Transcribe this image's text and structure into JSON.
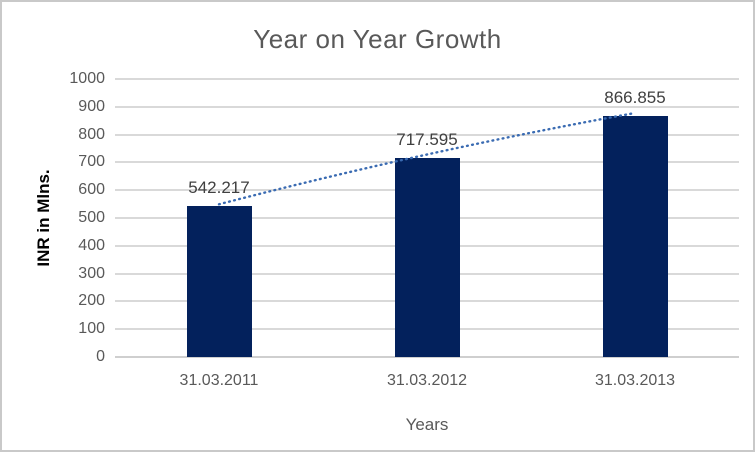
{
  "chart_data": {
    "type": "bar",
    "title": "Year on Year Growth",
    "categories": [
      "31.03.2011",
      "31.03.2012",
      "31.03.2013"
    ],
    "values": [
      542.217,
      717.595,
      866.855
    ],
    "data_labels": [
      "542.217",
      "717.595",
      "866.855"
    ],
    "xlabel": "Years",
    "ylabel": "INR in Mlns.",
    "ylim": [
      0,
      1000
    ],
    "ytick_step": 100,
    "grid": true,
    "legend_position": "none",
    "trendline": true
  },
  "colors": {
    "bar_fill": "#03215C",
    "trendline": "#3A6BB2",
    "gridline": "#D9D9D9",
    "axis_line": "#CFCFCF",
    "tick_text": "#595959",
    "title_text": "#595959",
    "axis_title_text": "#595959",
    "y_axis_title_text": "#000000",
    "data_label_text": "#404040",
    "border": "#C9C9C9",
    "background": "#FFFFFF"
  }
}
